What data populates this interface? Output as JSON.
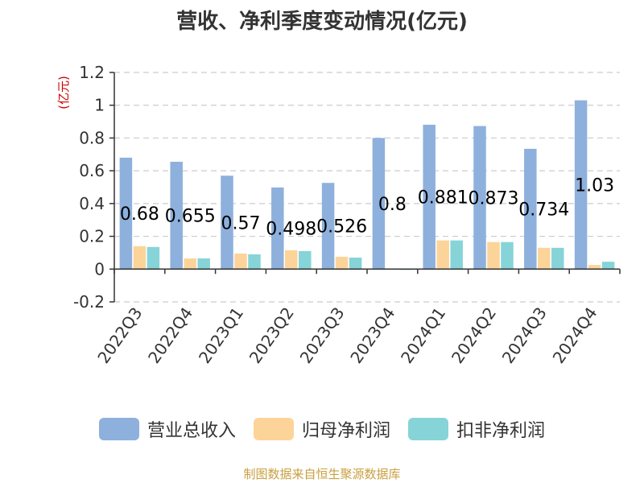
{
  "chart_data": {
    "type": "bar",
    "title": "营收、净利季度变动情况(亿元)",
    "ylabel": "(亿元)",
    "ylim": [
      -0.2,
      1.2
    ],
    "yticks": [
      -0.2,
      0,
      0.2,
      0.4,
      0.6,
      0.8,
      1,
      1.2
    ],
    "ytick_labels": [
      "-0.2",
      "0",
      "0.2",
      "0.4",
      "0.6",
      "0.8",
      "1",
      "1.2"
    ],
    "grid": true,
    "legend_position": "bottom",
    "categories": [
      "2022Q3",
      "2022Q4",
      "2023Q1",
      "2023Q2",
      "2023Q3",
      "2023Q4",
      "2024Q1",
      "2024Q2",
      "2024Q3",
      "2024Q4"
    ],
    "series": [
      {
        "name": "营业总收入",
        "color": "#8eb0dc",
        "values": [
          0.68,
          0.655,
          0.57,
          0.498,
          0.526,
          0.8,
          0.881,
          0.873,
          0.734,
          1.03
        ],
        "data_labels": [
          "0.68",
          "0.655",
          "0.57",
          "0.498",
          "0.526",
          "0.8",
          "0.881",
          "0.873",
          "0.734",
          "1.03"
        ]
      },
      {
        "name": "归母净利润",
        "color": "#fcd49a",
        "values": [
          0.14,
          0.065,
          0.095,
          0.115,
          0.075,
          0.0,
          0.175,
          0.165,
          0.13,
          0.025
        ]
      },
      {
        "name": "扣非净利润",
        "color": "#86d4d8",
        "values": [
          0.135,
          0.065,
          0.09,
          0.11,
          0.07,
          -0.005,
          0.175,
          0.165,
          0.13,
          0.045
        ]
      }
    ]
  },
  "source_text": "制图数据来自恒生聚源数据库"
}
